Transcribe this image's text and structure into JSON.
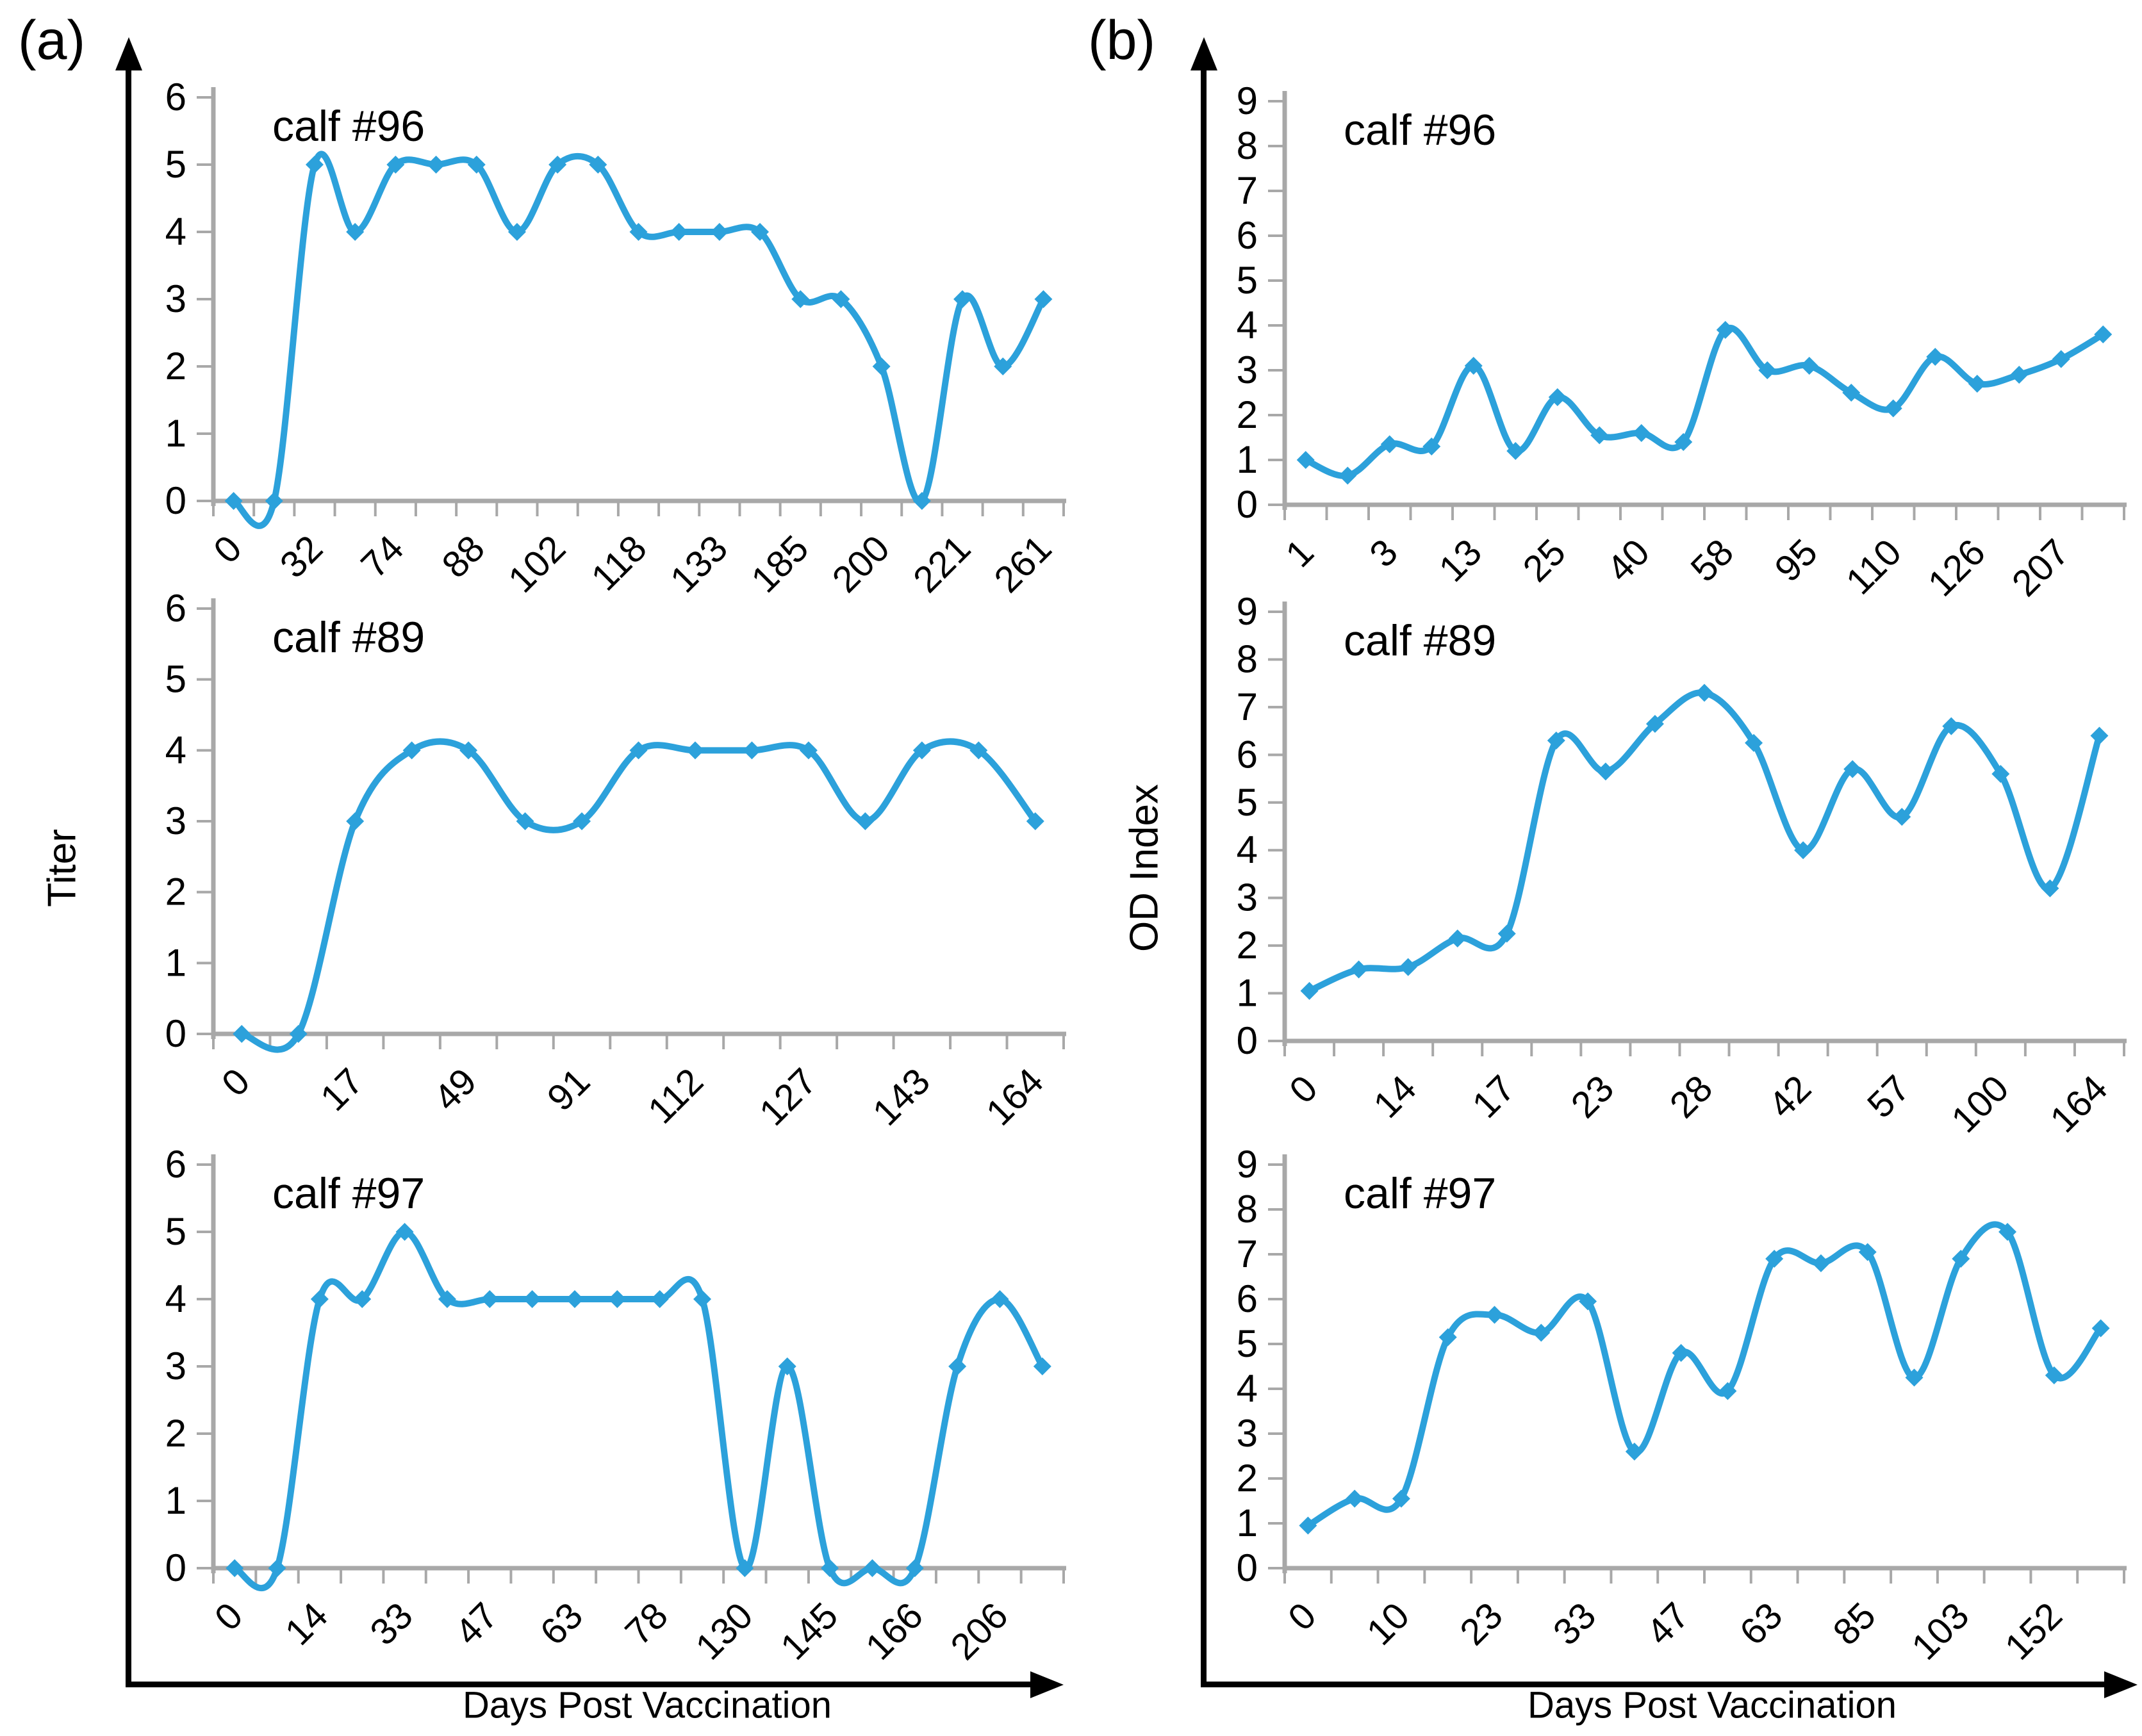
{
  "figure": {
    "panels": [
      {
        "label": "(a)",
        "y_axis_title": "Titer",
        "x_axis_title": "Days Post Vaccination"
      },
      {
        "label": "(b)",
        "y_axis_title": "OD Index",
        "x_axis_title": "Days Post Vaccination"
      }
    ]
  },
  "style": {
    "line_color": "#2CA1DB",
    "axis_color": "#A8A8A8",
    "text_color": "#000000"
  },
  "chart_data": [
    {
      "type": "line",
      "panel": "a",
      "title": "calf #96",
      "xlabel": "Days Post Vaccination",
      "ylabel": "Titer",
      "ylim": [
        0,
        6
      ],
      "grid": false,
      "legend": "none",
      "x_tick_labels": [
        "0",
        "",
        "32",
        "",
        "74",
        "",
        "88",
        "",
        "102",
        "",
        "118",
        "",
        "133",
        "",
        "185",
        "",
        "200",
        "",
        "221",
        "",
        "261"
      ],
      "values": [
        0,
        0,
        5,
        4,
        5,
        5,
        5,
        4,
        5,
        5,
        4,
        4,
        4,
        4,
        3,
        3,
        2,
        0,
        3,
        2,
        3
      ]
    },
    {
      "type": "line",
      "panel": "a",
      "title": "calf #89",
      "xlabel": "Days Post Vaccination",
      "ylabel": "Titer",
      "ylim": [
        0,
        6
      ],
      "grid": false,
      "legend": "none",
      "x_tick_labels": [
        "0",
        "",
        "17",
        "",
        "49",
        "",
        "91",
        "",
        "112",
        "",
        "127",
        "",
        "143",
        "",
        "164"
      ],
      "values": [
        0,
        0,
        3,
        4,
        4,
        3,
        3,
        4,
        4,
        4,
        4,
        3,
        4,
        4,
        3
      ]
    },
    {
      "type": "line",
      "panel": "a",
      "title": "calf #97",
      "xlabel": "Days Post Vaccination",
      "ylabel": "Titer",
      "ylim": [
        0,
        6
      ],
      "grid": false,
      "legend": "none",
      "x_tick_labels": [
        "0",
        "",
        "14",
        "",
        "33",
        "",
        "47",
        "",
        "63",
        "",
        "78",
        "",
        "130",
        "",
        "145",
        "",
        "166",
        "",
        "206",
        ""
      ],
      "values": [
        0,
        0,
        4,
        4,
        5,
        4,
        4,
        4,
        4,
        4,
        4,
        4,
        0,
        3,
        0,
        0,
        0,
        3,
        4,
        3
      ]
    },
    {
      "type": "line",
      "panel": "b",
      "title": "calf #96",
      "xlabel": "Days Post Vaccination",
      "ylabel": "OD Index",
      "ylim": [
        0,
        9
      ],
      "grid": false,
      "legend": "none",
      "x_tick_labels": [
        "1",
        "",
        "3",
        "",
        "13",
        "",
        "25",
        "",
        "40",
        "",
        "58",
        "",
        "95",
        "",
        "110",
        "",
        "126",
        "",
        "207",
        ""
      ],
      "values": [
        1.0,
        0.65,
        1.35,
        1.3,
        3.1,
        1.2,
        2.4,
        1.55,
        1.6,
        1.4,
        3.9,
        3.0,
        3.1,
        2.5,
        2.15,
        3.3,
        2.7,
        2.9,
        3.25,
        3.8
      ]
    },
    {
      "type": "line",
      "panel": "b",
      "title": "calf #89",
      "xlabel": "Days Post Vaccination",
      "ylabel": "OD Index",
      "ylim": [
        0,
        9
      ],
      "grid": false,
      "legend": "none",
      "x_tick_labels": [
        "0",
        "",
        "14",
        "",
        "17",
        "",
        "23",
        "",
        "28",
        "",
        "42",
        "",
        "57",
        "",
        "100",
        "",
        "164"
      ],
      "values": [
        1.05,
        1.5,
        1.55,
        2.15,
        2.25,
        6.3,
        5.65,
        6.65,
        7.3,
        6.25,
        4.0,
        5.7,
        4.7,
        6.6,
        5.6,
        3.2,
        6.4
      ]
    },
    {
      "type": "line",
      "panel": "b",
      "title": "calf #97",
      "xlabel": "Days Post Vaccination",
      "ylabel": "OD Index",
      "ylim": [
        0,
        9
      ],
      "grid": false,
      "legend": "none",
      "x_tick_labels": [
        "0",
        "",
        "10",
        "",
        "23",
        "",
        "33",
        "",
        "47",
        "",
        "63",
        "",
        "85",
        "",
        "103",
        "",
        "152",
        ""
      ],
      "values": [
        0.95,
        1.55,
        1.55,
        5.15,
        5.65,
        5.25,
        5.95,
        2.6,
        4.8,
        3.95,
        6.9,
        6.8,
        7.05,
        4.25,
        6.9,
        7.5,
        4.3,
        5.35
      ]
    }
  ]
}
